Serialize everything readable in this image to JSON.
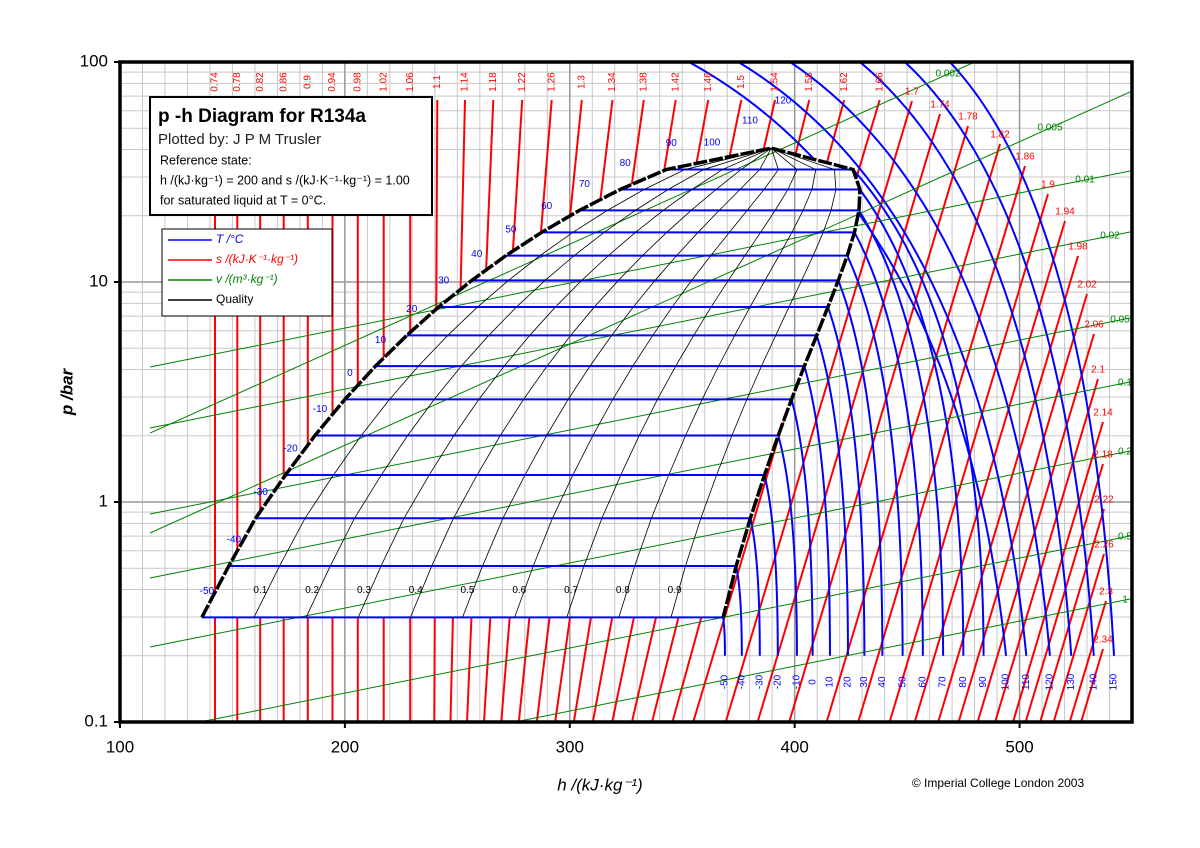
{
  "chart_data": {
    "type": "line",
    "title": "p -h  Diagram for R134a",
    "subtitle": "Plotted by: J P M Trusler",
    "notes": [
      "Reference state:",
      "h /(kJ·kg⁻¹) = 200 and s /(kJ·K⁻¹·kg⁻¹) = 1.00",
      "for saturated liquid at T = 0°C."
    ],
    "x_label": "h /(kJ·kg⁻¹)",
    "y_label": "p /bar",
    "credit": "© Imperial College London 2003",
    "xlim": [
      100,
      550
    ],
    "xticks": [
      100,
      200,
      300,
      400,
      500
    ],
    "ylim": [
      0.1,
      100
    ],
    "yticks": [
      0.1,
      1,
      10,
      100
    ],
    "y_scale": "log",
    "grid": true,
    "minor_grid": true,
    "legend": {
      "position": "upper left",
      "entries": [
        {
          "name": "T /°C",
          "color": "#0000ff"
        },
        {
          "name": "s /(kJ·K⁻¹·kg⁻¹)",
          "color": "#ff0000"
        },
        {
          "name": "v /(m³·kg⁻¹)",
          "color": "#008000"
        },
        {
          "name": "Quality",
          "color": "#000000"
        }
      ]
    },
    "saturation": {
      "color": "#000000",
      "T": [
        -50,
        -40,
        -30,
        -20,
        -10,
        0,
        10,
        20,
        30,
        40,
        50,
        60,
        70,
        80,
        90
      ],
      "p": [
        0.299,
        0.512,
        0.844,
        1.327,
        2.006,
        2.928,
        4.146,
        5.717,
        7.702,
        10.166,
        13.179,
        16.818,
        21.168,
        26.332,
        32.442
      ],
      "h_liquid": [
        136.4,
        148.4,
        160.3,
        173.6,
        186.7,
        200.0,
        213.6,
        227.5,
        241.7,
        256.4,
        271.6,
        287.5,
        304.3,
        322.4,
        342.9
      ],
      "h_vapor": [
        368.2,
        374.0,
        380.3,
        386.6,
        392.7,
        398.6,
        404.3,
        409.8,
        414.8,
        419.4,
        423.4,
        426.6,
        428.6,
        429.0,
        426.0
      ],
      "critical": {
        "h": 389.6,
        "p": 40.59
      }
    },
    "isotherms": {
      "color": "#0000ff",
      "p_start": 0.2,
      "T": [
        -50,
        -40,
        -30,
        -20,
        -10,
        0,
        10,
        20,
        30,
        40,
        50,
        60,
        70,
        80,
        90,
        100,
        110,
        120,
        130,
        140,
        150
      ],
      "h_start": [
        369,
        376.5,
        384.5,
        392.5,
        401,
        408,
        415.7,
        423.7,
        431,
        439,
        448,
        457,
        466,
        475,
        484,
        494,
        503,
        513.5,
        523,
        533,
        542
      ],
      "h_end_100bar": [
        null,
        null,
        null,
        null,
        null,
        null,
        null,
        null,
        null,
        null,
        null,
        null,
        null,
        null,
        null,
        353,
        375,
        398,
        429,
        449,
        469
      ]
    },
    "isentropes": {
      "color": "#ff0000",
      "s": [
        0.74,
        0.78,
        0.82,
        0.86,
        0.9,
        0.94,
        0.98,
        1.02,
        1.06,
        1.1,
        1.14,
        1.18,
        1.22,
        1.26,
        1.3,
        1.34,
        1.38,
        1.42,
        1.46,
        1.5,
        1.54,
        1.58,
        1.62,
        1.66,
        1.7,
        1.74,
        1.78,
        1.82,
        1.86,
        1.9,
        1.94,
        1.98,
        2.02,
        2.06,
        2.1,
        2.14,
        2.18,
        2.22,
        2.26,
        2.3,
        2.34
      ]
    },
    "isochores": {
      "color": "#008000",
      "v": [
        0.002,
        0.005,
        0.01,
        0.02,
        0.05,
        0.1,
        0.2,
        0.5,
        1
      ]
    },
    "quality": {
      "color": "#000000",
      "x": [
        0.1,
        0.2,
        0.3,
        0.4,
        0.5,
        0.6,
        0.7,
        0.8,
        0.9
      ]
    }
  }
}
